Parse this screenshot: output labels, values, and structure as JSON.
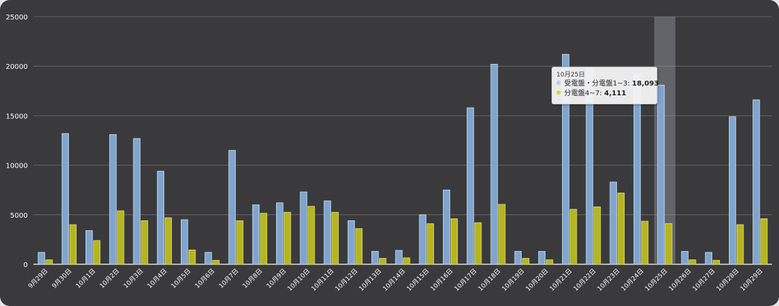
{
  "chart_data": {
    "type": "bar",
    "title": "",
    "xlabel": "",
    "ylabel": "",
    "ylim": [
      0,
      25000
    ],
    "yticks": [
      "0",
      "5000",
      "10000",
      "15000",
      "20000",
      "25000"
    ],
    "ytick_values": [
      0,
      5000,
      10000,
      15000,
      20000,
      25000
    ],
    "grid": true,
    "highlighted_category": "10月25日",
    "categories": [
      "9月29日",
      "9月30日",
      "10月1日",
      "10月2日",
      "10月3日",
      "10月4日",
      "10月5日",
      "10月6日",
      "10月7日",
      "10月8日",
      "10月9日",
      "10月10日",
      "10月11日",
      "10月12日",
      "10月13日",
      "10月14日",
      "10月15日",
      "10月16日",
      "10月17日",
      "10月18日",
      "10月19日",
      "10月20日",
      "10月21日",
      "10月22日",
      "10月23日",
      "10月24日",
      "10月25日",
      "10月26日",
      "10月27日",
      "10月28日",
      "10月29日"
    ],
    "series": [
      {
        "name": "受電盤・分電盤1~3",
        "color": "#7fa5cf",
        "values": [
          1200,
          13200,
          3400,
          13100,
          12700,
          9400,
          4500,
          1200,
          11500,
          6000,
          6200,
          7300,
          6400,
          4400,
          1300,
          1400,
          5000,
          7500,
          15800,
          20200,
          1300,
          1300,
          21200,
          19800,
          8300,
          19200,
          18093,
          1300,
          1200,
          14900,
          16600
        ]
      },
      {
        "name": "分電盤4~7",
        "color": "#b5b520",
        "values": [
          450,
          4000,
          2400,
          5400,
          4400,
          4700,
          1450,
          400,
          4400,
          5150,
          5250,
          5850,
          5250,
          3600,
          600,
          650,
          4100,
          4600,
          4200,
          6050,
          600,
          450,
          5550,
          5800,
          7200,
          4350,
          4111,
          450,
          400,
          4000,
          4600
        ]
      }
    ]
  },
  "tooltip": {
    "title": "10月25日",
    "row1_label": "受電盤・分電盤1~3: ",
    "row1_value": "18,093",
    "row2_label": "分電盤4~7: ",
    "row2_value": "4,111"
  }
}
